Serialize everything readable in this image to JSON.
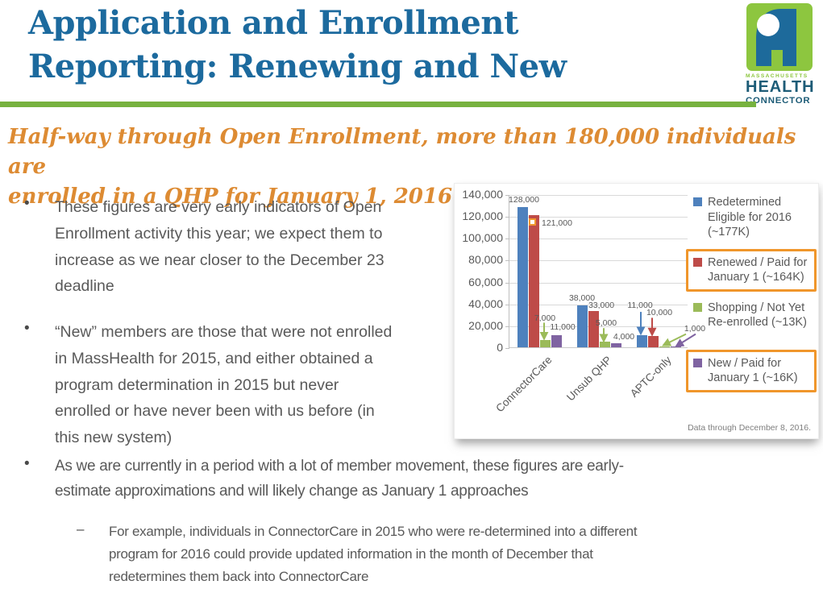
{
  "meta": {
    "bullet_char": "•",
    "dash_char": "–"
  },
  "header": {
    "title": "Application and Enrollment\nReporting: Renewing and New"
  },
  "logo": {
    "region": "MASSACHUSETTS",
    "line1": "HEALTH",
    "line2": "CONNECTOR"
  },
  "subtitle": "Half-way through Open Enrollment,  more than 180,000 individuals are\nenrolled in a QHP for January 1, 2016.",
  "bullets": {
    "b1": "These figures are very early indicators of Open\nEnrollment activity this year; we expect them to\nincrease as we near closer to the December 23\ndeadline",
    "b2": "“New” members are those that were not enrolled\nin MassHealth for 2015, and either obtained a\nprogram determination in 2015 but never\nenrolled or have never been with us before (in\nthis new system)",
    "b3": "As we are currently in a period with a lot of member movement, these figures are early-\nestimate approximations and will likely change as January 1 approaches",
    "sub": "For example, individuals in ConnectorCare in 2015 who were re-determined into a different\nprogram for 2016 could provide updated information in the month of December that\nredetermines them back into ConnectorCare"
  },
  "colors": {
    "title_blue": "#1C6A9E",
    "subtitle_orange": "#DD8B33",
    "divider_green": "#77B23F",
    "body_gray": "#595959",
    "logo_green": "#8DC63F",
    "logo_navy": "#1D5C77",
    "highlight_box": "#F0962B",
    "gridline": "#D9D9D9"
  },
  "chart_data": {
    "type": "bar",
    "categories": [
      "ConnectorCare",
      "Unsub QHP",
      "APTC-only"
    ],
    "series": [
      {
        "name": "Redetermined Eligible for 2016 (~177K)",
        "color": "#4E81BD",
        "highlighted": false,
        "values": [
          128000,
          38000,
          11000
        ]
      },
      {
        "name": "Renewed / Paid for January 1 (~164K)",
        "color": "#BE4B48",
        "highlighted": true,
        "values": [
          121000,
          33000,
          10000
        ]
      },
      {
        "name": "Shopping / Not Yet Re-enrolled (~13K)",
        "color": "#9BBB59",
        "highlighted": false,
        "values": [
          7000,
          5000,
          1000
        ]
      },
      {
        "name": "New / Paid for January 1 (~16K)",
        "color": "#7F63A1",
        "highlighted": true,
        "values": [
          11000,
          4000,
          1000
        ]
      }
    ],
    "ylim": [
      0,
      140000
    ],
    "ytick_step": 20000,
    "grid": true,
    "legend_position": "right",
    "footnote": "Data through December 8, 2016."
  }
}
